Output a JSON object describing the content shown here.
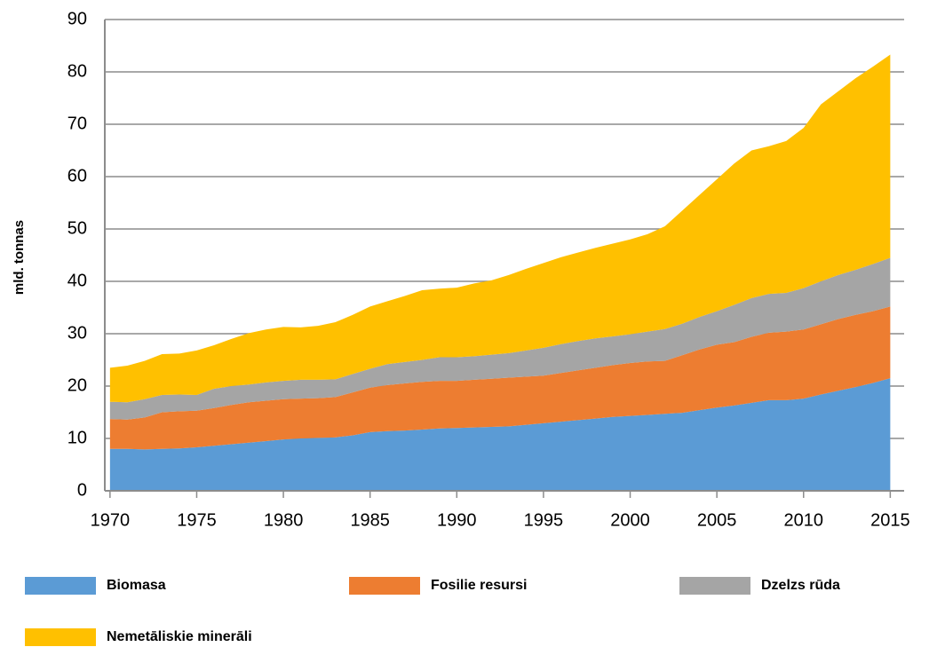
{
  "chart_data": {
    "type": "stacked_area",
    "y_label": "mld. tonnas",
    "x": [
      1970,
      1971,
      1972,
      1973,
      1974,
      1975,
      1976,
      1977,
      1978,
      1979,
      1980,
      1981,
      1982,
      1983,
      1984,
      1985,
      1986,
      1987,
      1988,
      1989,
      1990,
      1991,
      1992,
      1993,
      1994,
      1995,
      1996,
      1997,
      1998,
      1999,
      2000,
      2001,
      2002,
      2003,
      2004,
      2005,
      2006,
      2007,
      2008,
      2009,
      2010,
      2011,
      2012,
      2013,
      2014,
      2015
    ],
    "series": [
      {
        "name": "Biomasa",
        "color": "#5b9bd5",
        "values": [
          8.0,
          8.0,
          7.9,
          8.0,
          8.1,
          8.3,
          8.6,
          8.9,
          9.2,
          9.5,
          9.8,
          10.0,
          10.1,
          10.2,
          10.6,
          11.2,
          11.4,
          11.5,
          11.7,
          11.9,
          12.0,
          12.1,
          12.2,
          12.3,
          12.6,
          12.9,
          13.2,
          13.5,
          13.8,
          14.1,
          14.3,
          14.5,
          14.7,
          14.9,
          15.4,
          15.9,
          16.3,
          16.8,
          17.3,
          17.3,
          17.6,
          18.4,
          19.1,
          19.8,
          20.6,
          21.5
        ]
      },
      {
        "name": "Fosilie resursi",
        "color": "#ed7d31",
        "values": [
          5.7,
          5.6,
          6.1,
          7.0,
          7.1,
          7.0,
          7.2,
          7.5,
          7.7,
          7.7,
          7.7,
          7.6,
          7.6,
          7.7,
          8.2,
          8.5,
          8.8,
          9.0,
          9.1,
          9.1,
          9.0,
          9.1,
          9.2,
          9.3,
          9.2,
          9.1,
          9.3,
          9.5,
          9.7,
          9.9,
          10.1,
          10.2,
          10.1,
          11.0,
          11.6,
          12.0,
          12.1,
          12.6,
          12.9,
          13.1,
          13.2,
          13.4,
          13.7,
          13.8,
          13.7,
          13.7
        ]
      },
      {
        "name": "Dzelzs rūda",
        "color": "#a5a5a5",
        "values": [
          3.3,
          3.3,
          3.5,
          3.3,
          3.2,
          3.0,
          3.7,
          3.6,
          3.4,
          3.5,
          3.5,
          3.6,
          3.5,
          3.4,
          3.5,
          3.6,
          4.0,
          4.1,
          4.2,
          4.5,
          4.5,
          4.5,
          4.6,
          4.7,
          5.0,
          5.3,
          5.5,
          5.6,
          5.6,
          5.5,
          5.5,
          5.7,
          6.1,
          6.0,
          6.2,
          6.4,
          7.1,
          7.4,
          7.4,
          7.4,
          7.9,
          8.2,
          8.4,
          8.6,
          9.0,
          9.3
        ]
      },
      {
        "name": "Nemetāliskie minerāli",
        "color": "#ffc000",
        "values": [
          6.5,
          7.0,
          7.3,
          7.8,
          7.8,
          8.5,
          8.3,
          9.0,
          9.8,
          10.1,
          10.3,
          10.0,
          10.3,
          10.9,
          11.3,
          11.9,
          12.0,
          12.6,
          13.3,
          13.1,
          13.3,
          13.9,
          14.2,
          14.9,
          15.6,
          16.2,
          16.6,
          16.9,
          17.3,
          17.7,
          18.1,
          18.6,
          19.6,
          21.6,
          23.3,
          25.2,
          27.0,
          28.2,
          28.2,
          29.0,
          30.6,
          33.8,
          35.1,
          36.6,
          37.7,
          38.8
        ]
      }
    ],
    "xlim": [
      1969.7,
      2015.8
    ],
    "xticks": [
      1970,
      1975,
      1980,
      1985,
      1990,
      1995,
      2000,
      2005,
      2010,
      2015
    ],
    "ylim": [
      0,
      90
    ],
    "yticks": [
      0,
      10,
      20,
      30,
      40,
      50,
      60,
      70,
      80,
      90
    ],
    "grid": true,
    "legend": "bottom"
  }
}
